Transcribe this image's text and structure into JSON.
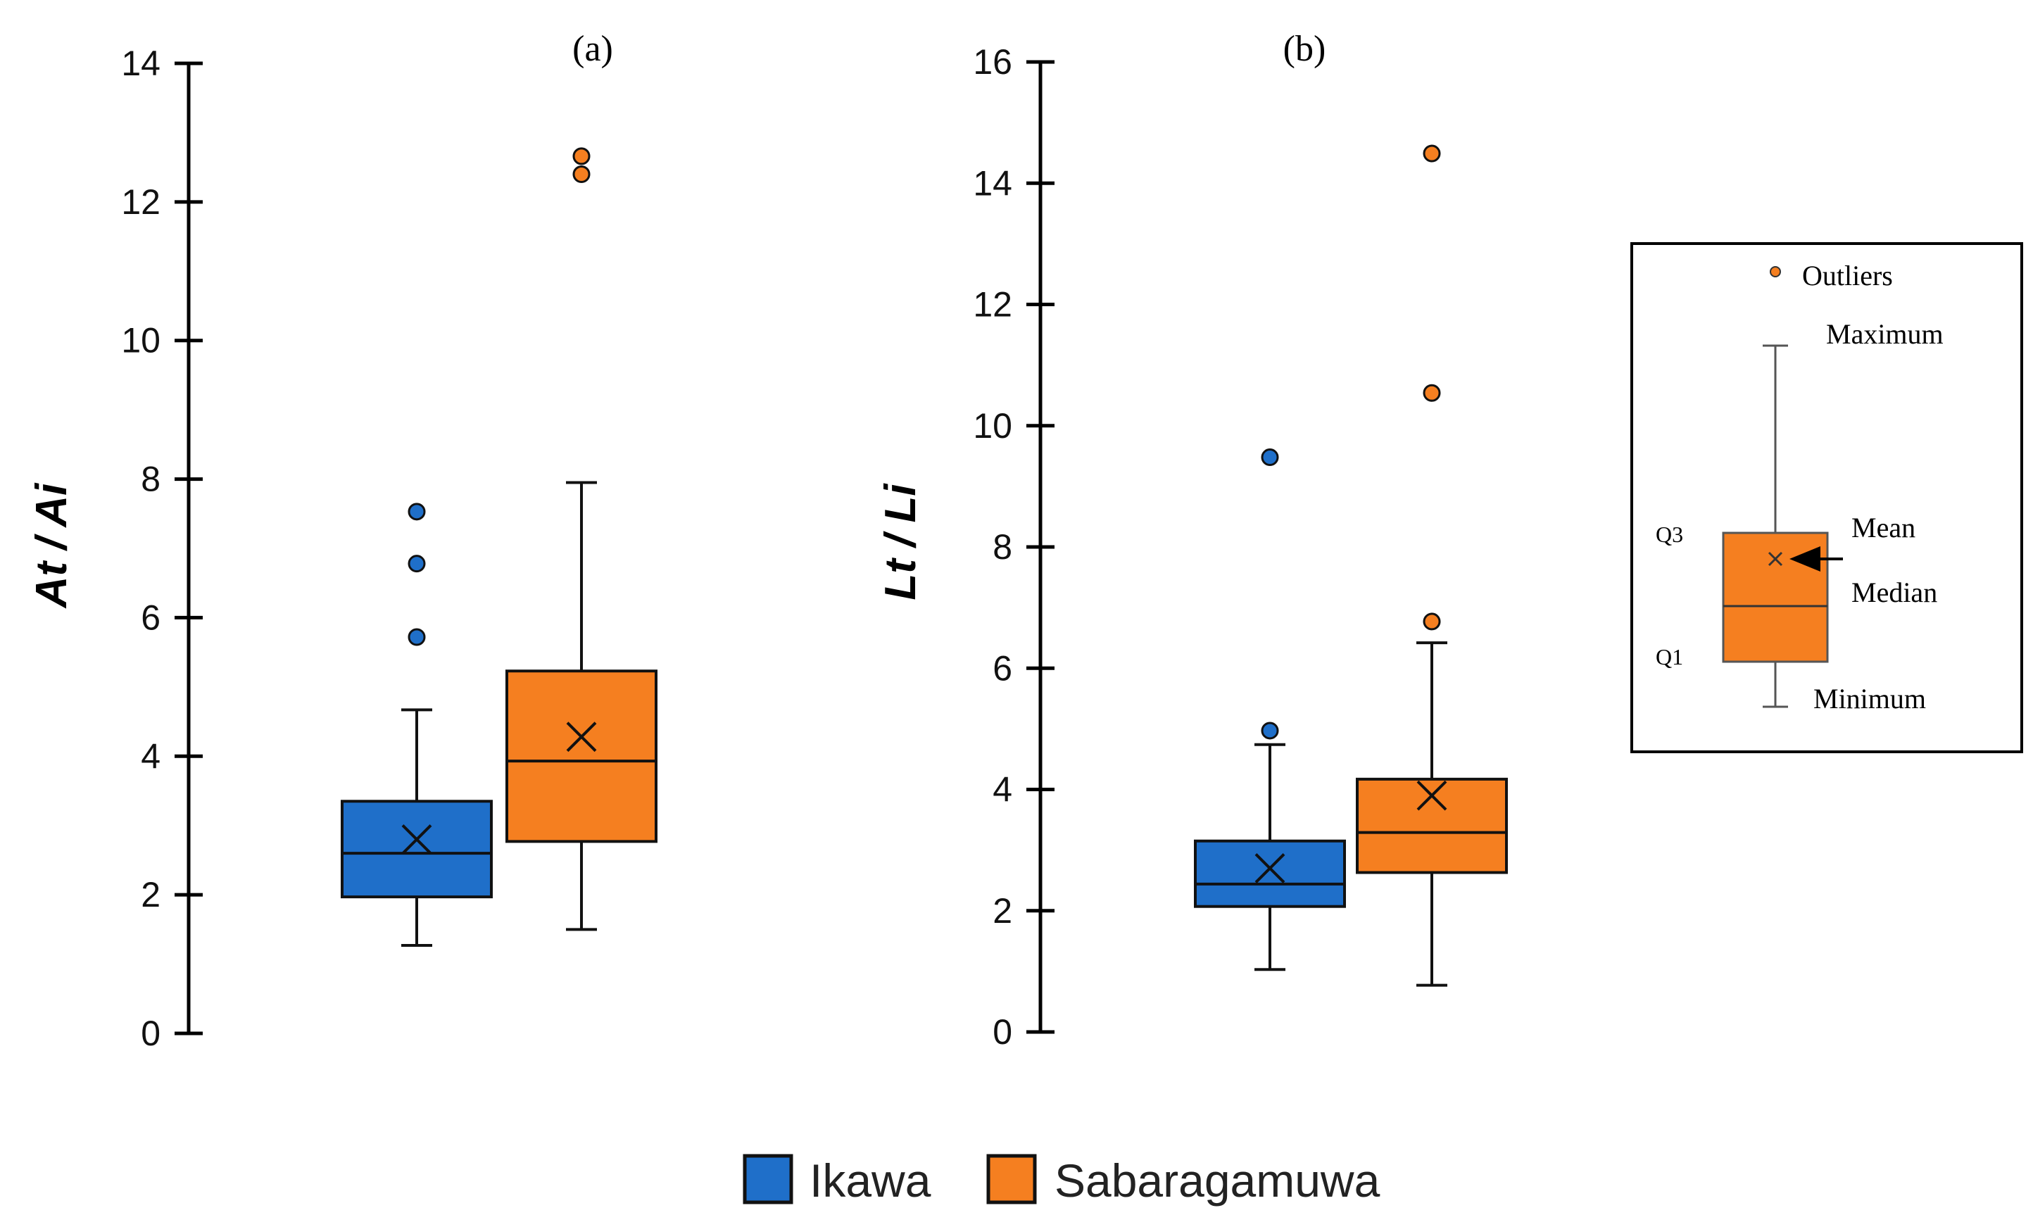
{
  "chart_data": [
    {
      "type": "box",
      "panel_label": "(a)",
      "ylabel": "At / Ai",
      "ylim": [
        0,
        14
      ],
      "yticks": [
        0,
        2,
        4,
        6,
        8,
        10,
        12,
        14
      ],
      "series": [
        {
          "name": "Ikawa",
          "color": "#1f6fc9",
          "min": 1.27,
          "q1": 1.97,
          "median": 2.6,
          "q3": 3.35,
          "max": 4.67,
          "mean": 2.8,
          "outliers": [
            5.72,
            6.78,
            7.53
          ]
        },
        {
          "name": "Sabaragamuwa",
          "color": "#f57f20",
          "min": 1.5,
          "q1": 2.77,
          "median": 3.93,
          "q3": 5.23,
          "max": 7.95,
          "mean": 4.28,
          "outliers": [
            12.4,
            12.66
          ]
        }
      ]
    },
    {
      "type": "box",
      "panel_label": "(b)",
      "ylabel": "Lt / Li",
      "ylim": [
        0,
        16
      ],
      "yticks": [
        0,
        2,
        4,
        6,
        8,
        10,
        12,
        14,
        16
      ],
      "series": [
        {
          "name": "Ikawa",
          "color": "#1f6fc9",
          "min": 1.03,
          "q1": 2.07,
          "median": 2.44,
          "q3": 3.15,
          "max": 4.74,
          "mean": 2.7,
          "outliers": [
            4.97,
            9.48
          ]
        },
        {
          "name": "Sabaragamuwa",
          "color": "#f57f20",
          "min": 0.77,
          "q1": 2.63,
          "median": 3.29,
          "q3": 4.17,
          "max": 6.42,
          "mean": 3.9,
          "outliers": [
            6.77,
            10.54,
            14.49
          ]
        }
      ]
    }
  ],
  "legend": {
    "items": [
      {
        "name": "Ikawa",
        "color": "#1f6fc9"
      },
      {
        "name": "Sabaragamuwa",
        "color": "#f57f20"
      }
    ]
  },
  "key": {
    "outliers": "Outliers",
    "maximum": "Maximum",
    "q3": "Q3",
    "mean": "Mean",
    "median": "Median",
    "q1": "Q1",
    "minimum": "Minimum",
    "fill_color": "#f57f20"
  }
}
